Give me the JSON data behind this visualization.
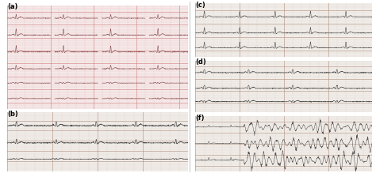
{
  "bg_color_a": "#f5e8e8",
  "bg_color_b": "#f0ece8",
  "bg_color_c": "#f0ece8",
  "bg_color_d": "#f0ece8",
  "bg_color_f": "#f0ece8",
  "grid_minor_color": "#e8b8b8",
  "grid_major_color": "#d08080",
  "grid_minor_color2": "#d8c8c0",
  "grid_major_color2": "#b09080",
  "outer_bg": "#ffffff",
  "label_a": "(a)",
  "label_b": "(b)",
  "label_c": "(c)",
  "label_d": "(d)",
  "label_f": "(f)",
  "ecg_color_a": "#804040",
  "ecg_color_b": "#404040",
  "ecg_color_c": "#404040",
  "ecg_color_d": "#404040",
  "ecg_color_f": "#404040",
  "num_rows_a": 6,
  "num_rows_b": 3,
  "num_rows_c": 3,
  "num_rows_d": 3,
  "num_rows_f": 3
}
